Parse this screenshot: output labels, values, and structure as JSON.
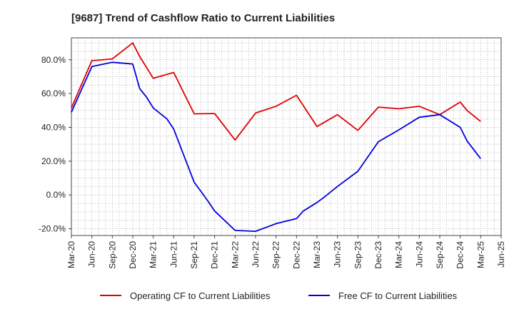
{
  "chart_data": {
    "type": "line",
    "title": "[9687]  Trend of Cashflow Ratio to Current Liabilities",
    "xlabel": "",
    "ylabel": "",
    "ylim": [
      -24,
      93
    ],
    "yticks": [
      -20,
      0,
      20,
      40,
      60,
      80
    ],
    "ytick_labels": [
      "-20.0%",
      "0.0%",
      "20.0%",
      "40.0%",
      "60.0%",
      "80.0%"
    ],
    "x": [
      "Mar-20",
      "Apr-20",
      "May-20",
      "Jun-20",
      "Jul-20",
      "Aug-20",
      "Sep-20",
      "Oct-20",
      "Nov-20",
      "Dec-20",
      "Jan-21",
      "Feb-21",
      "Mar-21",
      "Apr-21",
      "May-21",
      "Jun-21",
      "Jul-21",
      "Aug-21",
      "Sep-21",
      "Oct-21",
      "Nov-21",
      "Dec-21",
      "Jan-22",
      "Feb-22",
      "Mar-22",
      "Apr-22",
      "May-22",
      "Jun-22",
      "Jul-22",
      "Aug-22",
      "Sep-22",
      "Oct-22",
      "Nov-22",
      "Dec-22",
      "Jan-23",
      "Feb-23",
      "Mar-23",
      "Apr-23",
      "May-23",
      "Jun-23",
      "Jul-23",
      "Aug-23",
      "Sep-23",
      "Oct-23",
      "Nov-23",
      "Dec-23",
      "Jan-24",
      "Feb-24",
      "Mar-24",
      "Apr-24",
      "May-24",
      "Jun-24",
      "Jul-24",
      "Aug-24",
      "Sep-24",
      "Oct-24",
      "Nov-24",
      "Dec-24",
      "Jan-25",
      "Feb-25",
      "Mar-25",
      "Apr-25",
      "May-25",
      "Jun-25"
    ],
    "xticks": [
      "Mar-20",
      "Jun-20",
      "Sep-20",
      "Dec-20",
      "Mar-21",
      "Jun-21",
      "Sep-21",
      "Dec-21",
      "Mar-22",
      "Jun-22",
      "Sep-22",
      "Dec-22",
      "Mar-23",
      "Jun-23",
      "Sep-23",
      "Dec-23",
      "Mar-24",
      "Jun-24",
      "Sep-24",
      "Dec-24",
      "Mar-25",
      "Jun-25"
    ],
    "grid": true,
    "legend_position": "bottom",
    "series": [
      {
        "name": "Operating CF to Current Liabilities",
        "color": "#e00000",
        "points": [
          [
            "Mar-20",
            51.5
          ],
          [
            "Jun-20",
            79.5
          ],
          [
            "Sep-20",
            80.5
          ],
          [
            "Dec-20",
            90.0
          ],
          [
            "Jan-21",
            82.0
          ],
          [
            "Mar-21",
            69.0
          ],
          [
            "Jun-21",
            72.5
          ],
          [
            "Sep-21",
            48.0
          ],
          [
            "Dec-21",
            48.2
          ],
          [
            "Mar-22",
            32.5
          ],
          [
            "Jun-22",
            48.5
          ],
          [
            "Sep-22",
            52.5
          ],
          [
            "Dec-22",
            59.0
          ],
          [
            "Mar-23",
            40.5
          ],
          [
            "Jun-23",
            47.5
          ],
          [
            "Sep-23",
            38.2
          ],
          [
            "Dec-23",
            52.0
          ],
          [
            "Mar-24",
            51.0
          ],
          [
            "Jun-24",
            52.5
          ],
          [
            "Sep-24",
            47.5
          ],
          [
            "Dec-24",
            55.0
          ],
          [
            "Jan-25",
            50.0
          ],
          [
            "Mar-25",
            43.5
          ]
        ]
      },
      {
        "name": "Free CF to Current Liabilities",
        "color": "#0000e0",
        "points": [
          [
            "Mar-20",
            49.0
          ],
          [
            "Jun-20",
            76.0
          ],
          [
            "Sep-20",
            78.5
          ],
          [
            "Dec-20",
            77.5
          ],
          [
            "Jan-21",
            63.0
          ],
          [
            "Feb-21",
            58.0
          ],
          [
            "Mar-21",
            51.5
          ],
          [
            "May-21",
            45.0
          ],
          [
            "Jun-21",
            39.0
          ],
          [
            "Sep-21",
            7.5
          ],
          [
            "Oct-21",
            2.0
          ],
          [
            "Nov-21",
            -3.5
          ],
          [
            "Dec-21",
            -9.5
          ],
          [
            "Mar-22",
            -21.0
          ],
          [
            "Jun-22",
            -21.5
          ],
          [
            "Sep-22",
            -17.0
          ],
          [
            "Dec-22",
            -14.0
          ],
          [
            "Jan-23",
            -9.5
          ],
          [
            "Mar-23",
            -4.5
          ],
          [
            "Apr-23",
            -1.5
          ],
          [
            "Jun-23",
            5.0
          ],
          [
            "Sep-23",
            14.0
          ],
          [
            "Dec-23",
            31.5
          ],
          [
            "Mar-24",
            38.5
          ],
          [
            "Jun-24",
            46.0
          ],
          [
            "Sep-24",
            47.5
          ],
          [
            "Dec-24",
            40.0
          ],
          [
            "Jan-25",
            32.0
          ],
          [
            "Mar-25",
            21.5
          ]
        ]
      }
    ]
  }
}
